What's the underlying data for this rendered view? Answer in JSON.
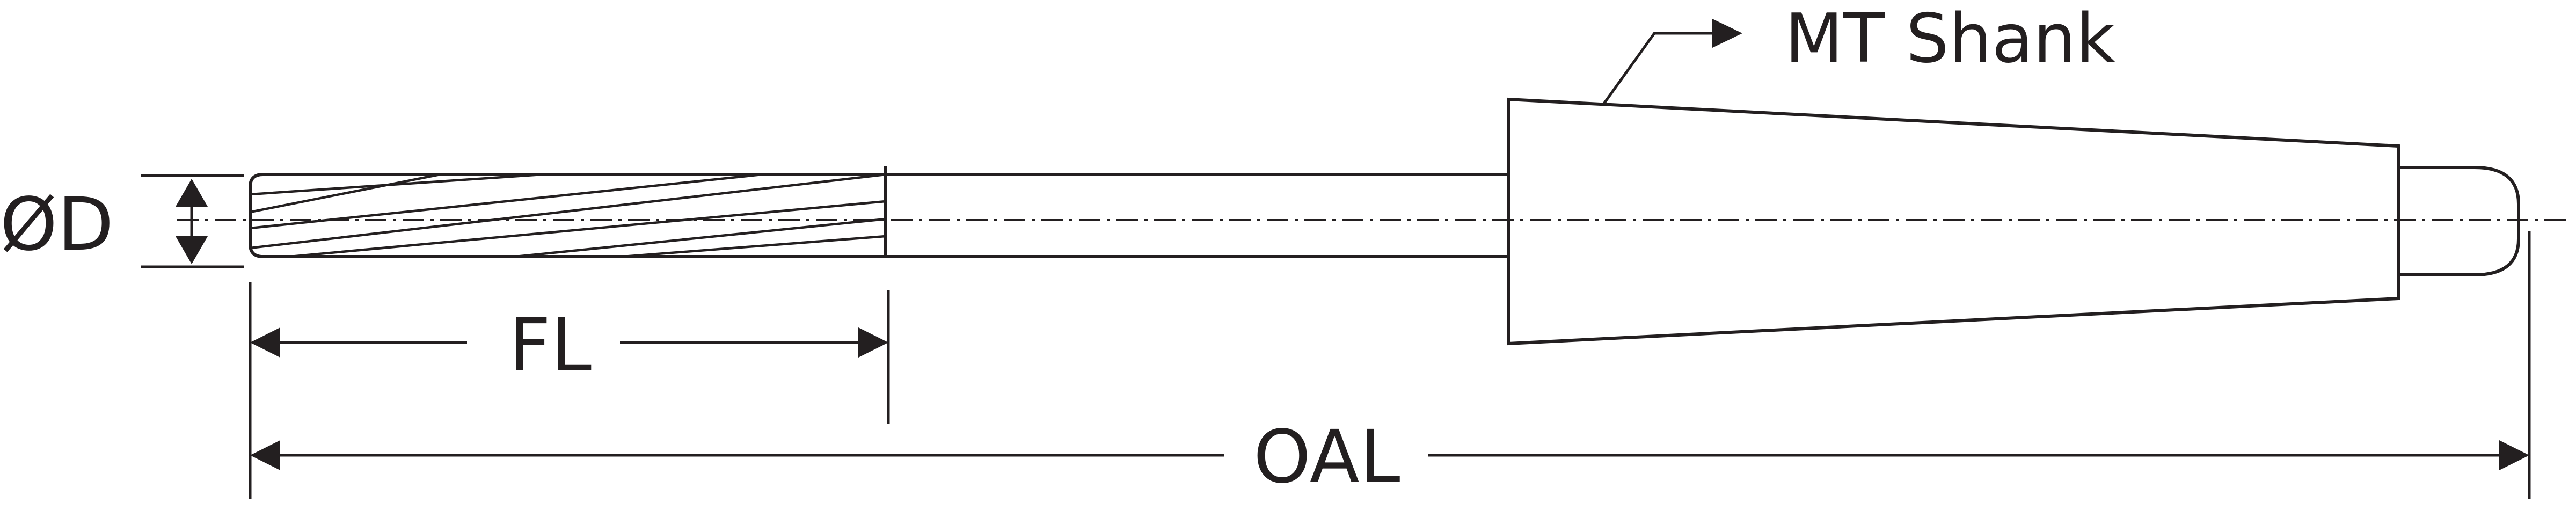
{
  "diagram": {
    "labels": {
      "diameter": "ØD",
      "flute_length": "FL",
      "overall_length": "OAL",
      "shank": "MT Shank"
    },
    "colors": {
      "line": "#231f20",
      "background": "#ffffff"
    }
  }
}
